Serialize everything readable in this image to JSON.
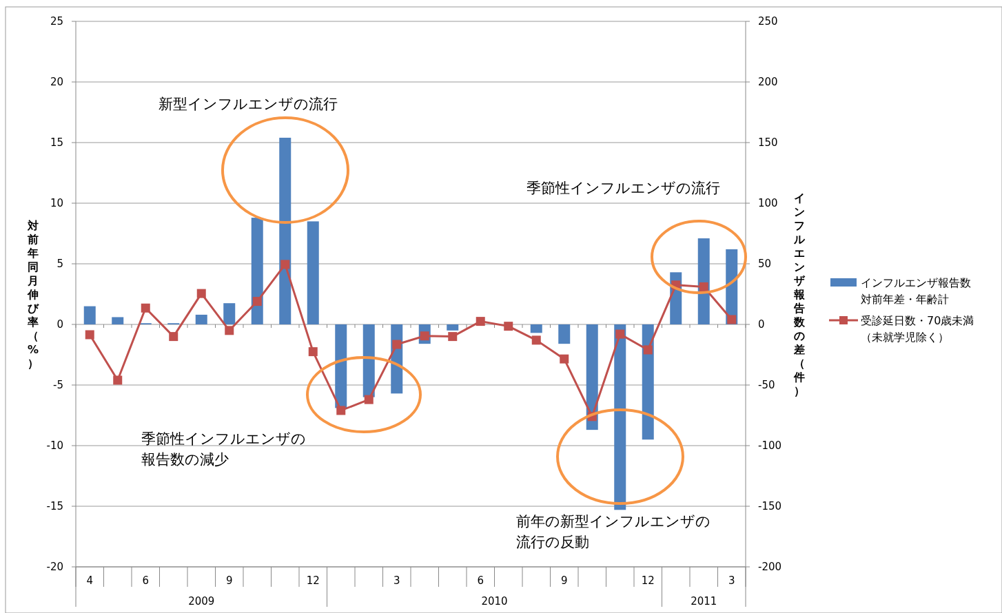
{
  "chart_data": {
    "type": "bar",
    "categories": [
      "4",
      null,
      "6",
      null,
      null,
      "9",
      null,
      null,
      "12",
      null,
      null,
      "3",
      null,
      null,
      "6",
      null,
      null,
      "9",
      null,
      null,
      "12",
      null,
      null,
      "3"
    ],
    "ylabel": "対前年同月伸び率（%）",
    "y2label": "インフルエンザ報告数の差（件）",
    "ylim": [
      -20,
      25
    ],
    "yticks": [
      -20,
      -15,
      -10,
      -5,
      0,
      5,
      10,
      15,
      20,
      25
    ],
    "y2lim": [
      -200,
      250
    ],
    "y2ticks": [
      -200,
      -150,
      -100,
      -50,
      0,
      50,
      100,
      150,
      200,
      250
    ],
    "grid": "y",
    "legend": "right",
    "series": [
      {
        "name": "インフルエンザ報告数対前年差・年齢計",
        "axis": "y2",
        "color": "#4f81bd",
        "values": [
          15,
          6,
          1,
          1,
          8,
          17.5,
          88,
          154,
          85,
          -69,
          -60,
          -57,
          -16,
          -5,
          0,
          0,
          -7,
          -16,
          -87,
          -153,
          -95,
          43,
          71,
          62
        ]
      },
      {
        "name": "受診延日数・70歳未満（未就学児除く）",
        "type": "line",
        "axis": "y",
        "color": "#c0504d",
        "marker": "square",
        "values": [
          -0.85,
          -4.6,
          1.35,
          -1.0,
          2.55,
          -0.5,
          1.9,
          4.95,
          -2.25,
          -7.1,
          -6.2,
          -1.65,
          -0.95,
          -1.0,
          0.25,
          -0.15,
          -1.3,
          -2.85,
          -7.6,
          -0.8,
          -2.1,
          3.25,
          3.1,
          0.4
        ]
      }
    ],
    "annotations": [
      "新型インフルエンザの流行",
      "季節性インフルエンザの流行",
      "季節性インフルエンザの報告数の減少",
      "前年の新型インフルエンザの流行の反動",
      "2009",
      "2010",
      "2011"
    ]
  }
}
